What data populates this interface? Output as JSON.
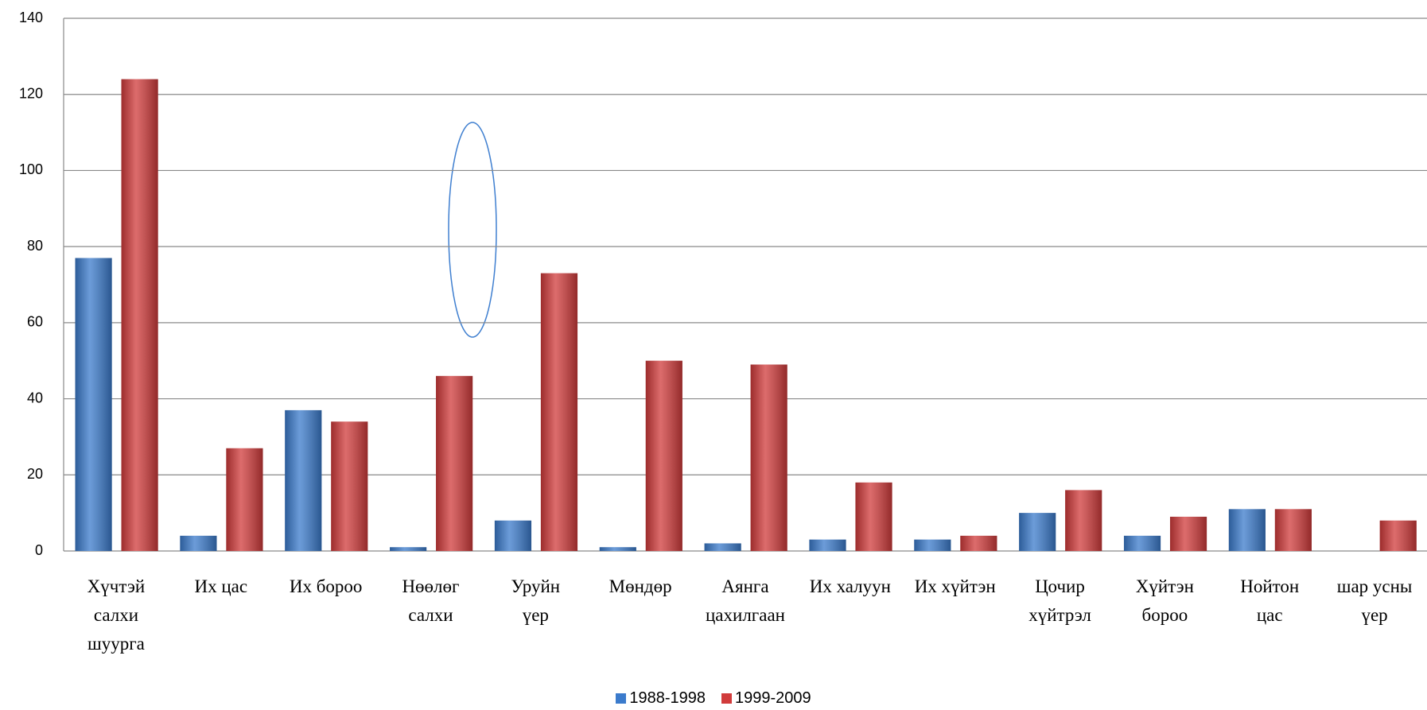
{
  "chart_data": {
    "type": "bar",
    "categories": [
      "Хүчтэй\nсалхи\nшуурга",
      "Их цас",
      "Их бороо",
      "Нөөлөг\nсалхи",
      "Уруйн\nүер",
      "Мөндөр",
      "Аянга\nцахилгаан",
      "Их халуун",
      "Их хүйтэн",
      "Цочир\nхүйтрэл",
      "Хүйтэн\nбороо",
      "Нойтон\nцас",
      "шар усны\nүер"
    ],
    "series": [
      {
        "name": "1988-1998",
        "color": "#3b7bcc",
        "values": [
          77,
          4,
          37,
          1,
          8,
          1,
          2,
          3,
          3,
          10,
          4,
          11,
          null
        ]
      },
      {
        "name": "1999-2009",
        "color": "#d13b3b",
        "values": [
          124,
          27,
          34,
          46,
          73,
          50,
          49,
          18,
          4,
          16,
          9,
          11,
          8
        ]
      }
    ],
    "ylim": [
      0,
      140
    ],
    "yticks": [
      0,
      20,
      40,
      60,
      80,
      100,
      120,
      140
    ],
    "grid": true,
    "legend": "bottom"
  }
}
